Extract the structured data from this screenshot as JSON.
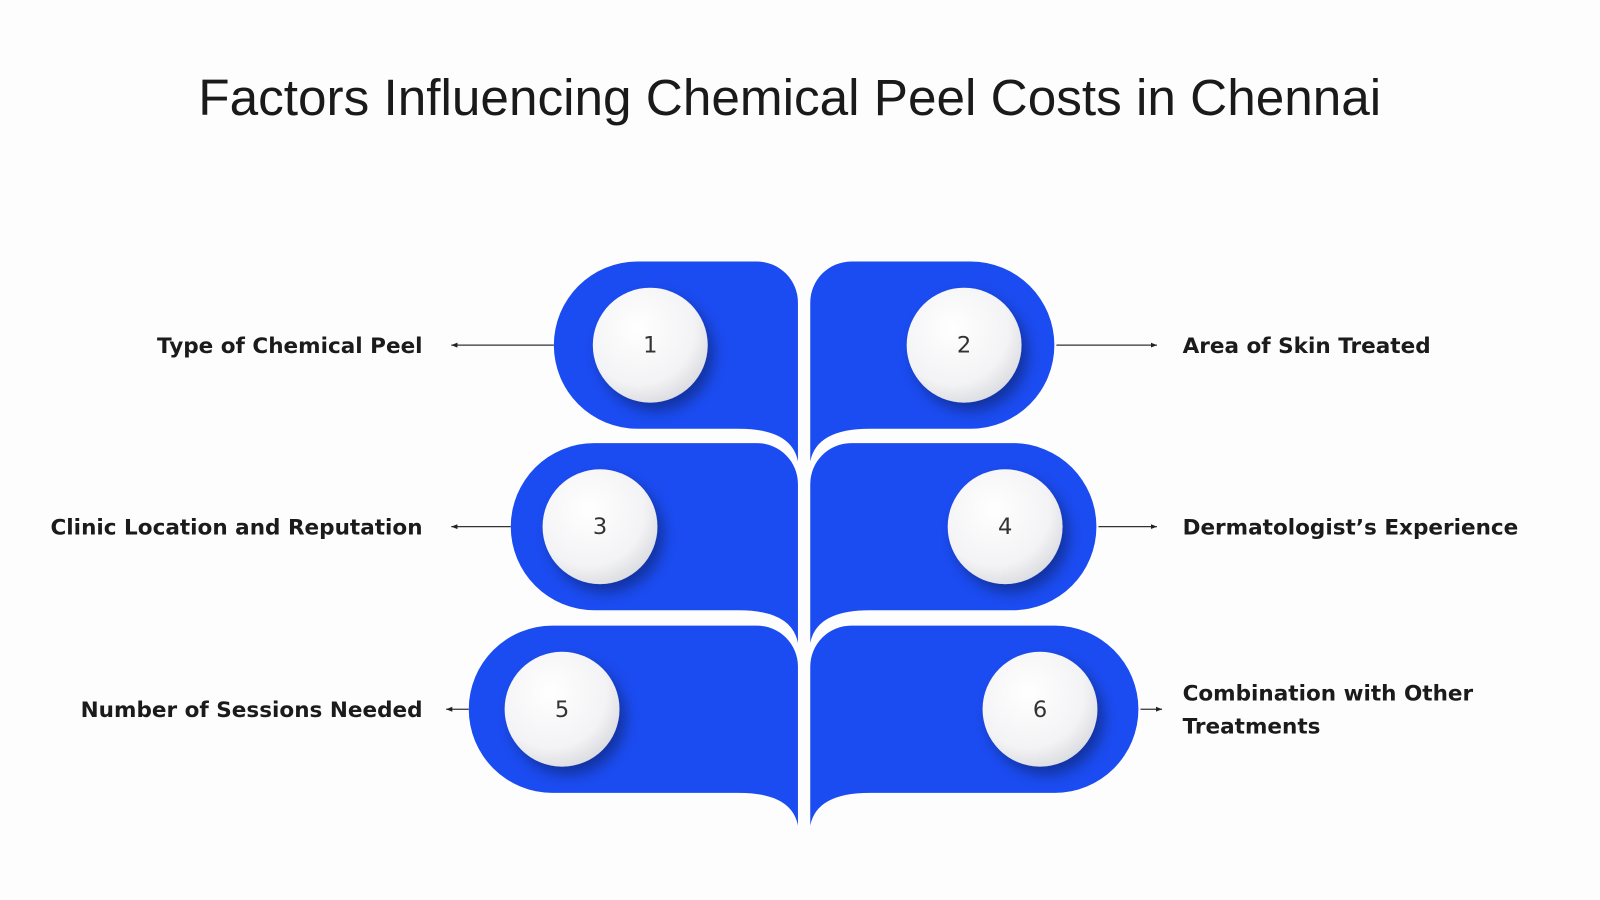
{
  "title": "Factors Influencing Chemical Peel Costs in Chennai",
  "items": [
    {
      "number": "1",
      "label": "Type of Chemical Peel"
    },
    {
      "number": "2",
      "label": "Area of Skin Treated"
    },
    {
      "number": "3",
      "label": "Clinic Location and Reputation"
    },
    {
      "number": "4",
      "label": "Dermatologist’s Experience"
    },
    {
      "number": "5",
      "label": "Number of Sessions Needed"
    },
    {
      "number": "6",
      "label": "Combination with Other Treatments"
    }
  ]
}
